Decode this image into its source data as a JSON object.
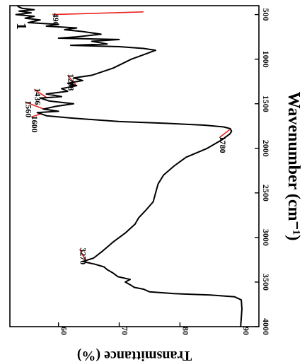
{
  "chart_data": {
    "type": "line",
    "panel_label": "1",
    "xlabel": "Transmittance (%)",
    "ylabel": "Wavenumber (cm⁻¹)",
    "x_axis": {
      "min": 52,
      "max": 93,
      "ticks": [
        90,
        80,
        70,
        60
      ]
    },
    "y_axis": {
      "min": 400,
      "max": 4000,
      "ticks": [
        500,
        1000,
        1500,
        2000,
        2500,
        3000,
        3500,
        4000
      ]
    },
    "series": [
      {
        "points": [
          [
            90.0,
            4000
          ],
          [
            90.1,
            3900
          ],
          [
            90.2,
            3800
          ],
          [
            90.1,
            3700
          ],
          [
            89.0,
            3665
          ],
          [
            85.0,
            3645
          ],
          [
            79.0,
            3630
          ],
          [
            75.0,
            3610
          ],
          [
            74.0,
            3580
          ],
          [
            72.5,
            3560
          ],
          [
            71.8,
            3530
          ],
          [
            71.0,
            3500
          ],
          [
            71.8,
            3470
          ],
          [
            69.8,
            3440
          ],
          [
            69.0,
            3400
          ],
          [
            68.0,
            3360
          ],
          [
            67.5,
            3330
          ],
          [
            66.0,
            3300
          ],
          [
            64.0,
            3270
          ],
          [
            65.8,
            3230
          ],
          [
            67.3,
            3150
          ],
          [
            69.0,
            3050
          ],
          [
            71.0,
            2950
          ],
          [
            72.6,
            2850
          ],
          [
            73.2,
            2780
          ],
          [
            74.3,
            2700
          ],
          [
            75.6,
            2600
          ],
          [
            76.0,
            2500
          ],
          [
            76.4,
            2400
          ],
          [
            77.3,
            2300
          ],
          [
            79.0,
            2200
          ],
          [
            81.0,
            2100
          ],
          [
            84.5,
            2000
          ],
          [
            87.0,
            1900
          ],
          [
            88.2,
            1840
          ],
          [
            88.5,
            1810
          ],
          [
            88.3,
            1780
          ],
          [
            87.2,
            1760
          ],
          [
            84.0,
            1740
          ],
          [
            78.0,
            1720
          ],
          [
            70.0,
            1700
          ],
          [
            62.0,
            1660
          ],
          [
            58.0,
            1635
          ],
          [
            57.0,
            1610
          ],
          [
            56.5,
            1600
          ],
          [
            60.0,
            1585
          ],
          [
            57.5,
            1560
          ],
          [
            59.5,
            1530
          ],
          [
            62.5,
            1500
          ],
          [
            58.5,
            1470
          ],
          [
            57.0,
            1436
          ],
          [
            60.5,
            1420
          ],
          [
            58.0,
            1390
          ],
          [
            61.5,
            1360
          ],
          [
            60.5,
            1330
          ],
          [
            63.0,
            1298
          ],
          [
            61.5,
            1270
          ],
          [
            64.0,
            1240
          ],
          [
            62.5,
            1210
          ],
          [
            65.5,
            1180
          ],
          [
            69.0,
            1100
          ],
          [
            72.0,
            1000
          ],
          [
            74.0,
            950
          ],
          [
            76.0,
            900
          ],
          [
            74.0,
            880
          ],
          [
            70.0,
            860
          ],
          [
            62.0,
            845
          ],
          [
            68.0,
            830
          ],
          [
            65.5,
            800
          ],
          [
            70.0,
            780
          ],
          [
            60.0,
            765
          ],
          [
            63.0,
            750
          ],
          [
            67.0,
            720
          ],
          [
            64.0,
            690
          ],
          [
            61.0,
            670
          ],
          [
            63.0,
            650
          ],
          [
            58.0,
            630
          ],
          [
            60.0,
            610
          ],
          [
            55.0,
            590
          ],
          [
            57.0,
            560
          ],
          [
            54.5,
            540
          ],
          [
            56.0,
            520
          ],
          [
            53.0,
            500
          ],
          [
            55.5,
            480
          ],
          [
            53.5,
            460
          ],
          [
            56.0,
            445
          ],
          [
            54.0,
            430
          ],
          [
            53.5,
            415
          ],
          [
            53.2,
            400
          ]
        ]
      }
    ],
    "annotations": [
      {
        "label": "490",
        "x": 74.0,
        "y": 470,
        "label_x": 59.0,
        "label_y": 500
      },
      {
        "label": "1298",
        "x": 63.0,
        "y": 1298,
        "label_x": 61.5,
        "label_y": 1180
      },
      {
        "label": "1436",
        "x": 58.2,
        "y": 1436,
        "label_x": 56.0,
        "label_y": 1340
      },
      {
        "label": "1560",
        "x": 57.6,
        "y": 1560,
        "label_x": 54.5,
        "label_y": 1480
      },
      {
        "label": "1600",
        "x": 57.2,
        "y": 1610,
        "label_x": 55.5,
        "label_y": 1650
      },
      {
        "label": "1780",
        "x": 88.2,
        "y": 1790,
        "label_x": 86.5,
        "label_y": 1880
      },
      {
        "label": "3270",
        "x": 64.5,
        "y": 3270,
        "label_x": 63.5,
        "label_y": 3130
      }
    ]
  }
}
